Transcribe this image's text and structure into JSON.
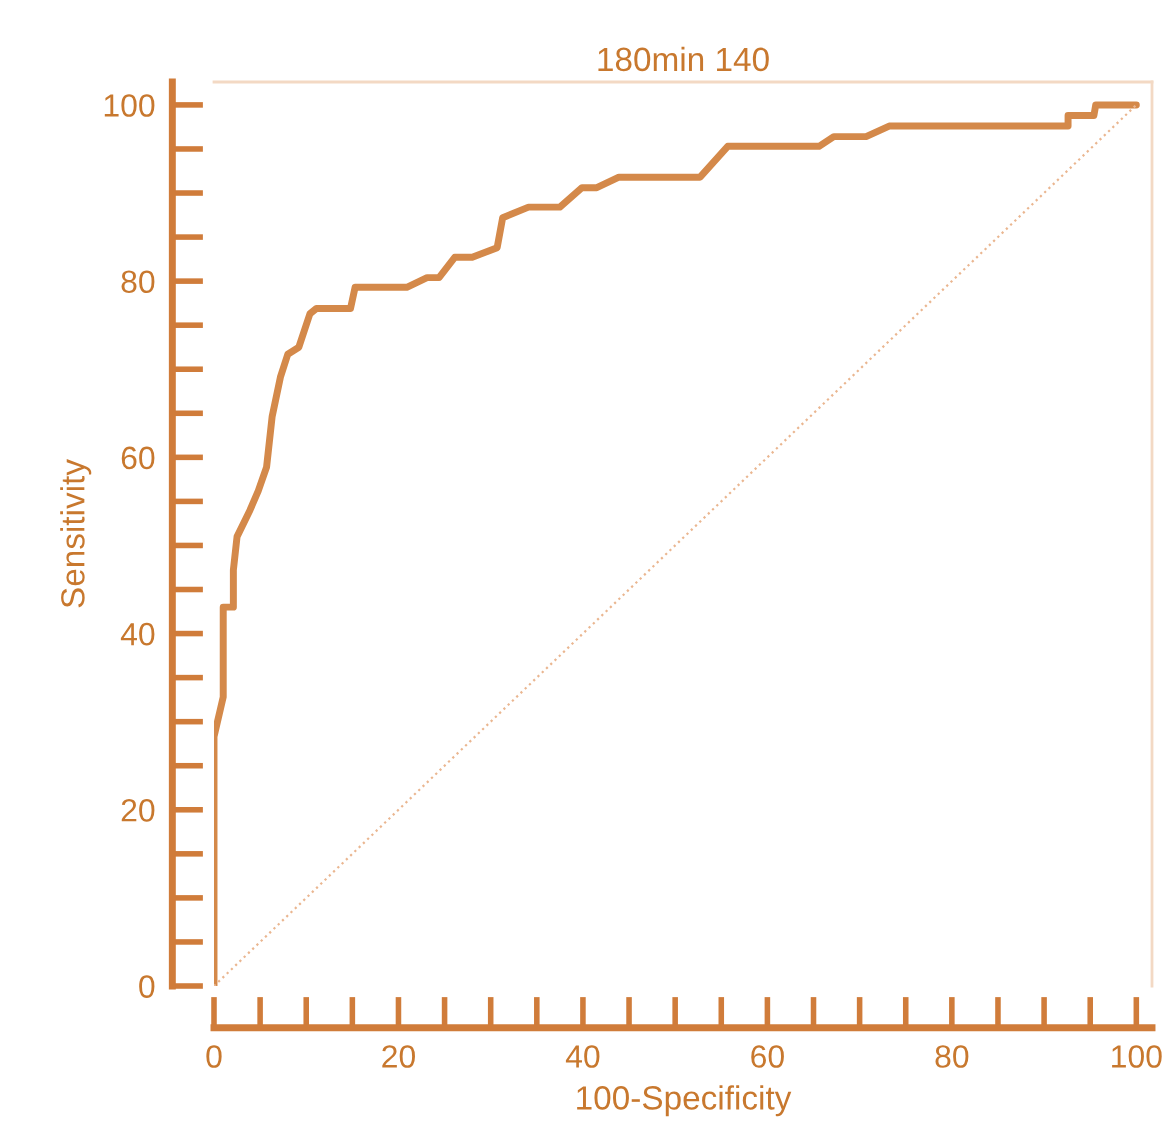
{
  "chart_data": {
    "type": "line",
    "title": "180min 140",
    "xlabel": "100-Specificity",
    "ylabel": "Sensitivity",
    "xlim": [
      0,
      101.7
    ],
    "ylim": [
      0,
      102.6
    ],
    "xticks": [
      0,
      {
        "value": 5,
        "label": null
      },
      {
        "value": 10,
        "label": null
      },
      {
        "value": 15,
        "label": null
      },
      20,
      {
        "value": 25,
        "label": null
      },
      {
        "value": 30,
        "label": null
      },
      {
        "value": 35,
        "label": null
      },
      40,
      {
        "value": 45,
        "label": null
      },
      {
        "value": 50,
        "label": null
      },
      {
        "value": 55,
        "label": null
      },
      60,
      {
        "value": 65,
        "label": null
      },
      {
        "value": 70,
        "label": null
      },
      {
        "value": 75,
        "label": null
      },
      80,
      {
        "value": 85,
        "label": null
      },
      {
        "value": 90,
        "label": null
      },
      {
        "value": 95,
        "label": null
      },
      100
    ],
    "yticks": [
      0,
      {
        "value": 5,
        "label": null
      },
      {
        "value": 10,
        "label": null
      },
      {
        "value": 15,
        "label": null
      },
      20,
      {
        "value": 25,
        "label": null
      },
      {
        "value": 30,
        "label": null
      },
      {
        "value": 35,
        "label": null
      },
      40,
      {
        "value": 45,
        "label": null
      },
      {
        "value": 50,
        "label": null
      },
      {
        "value": 55,
        "label": null
      },
      60,
      {
        "value": 65,
        "label": null
      },
      {
        "value": 70,
        "label": null
      },
      {
        "value": 75,
        "label": null
      },
      80,
      {
        "value": 85,
        "label": null
      },
      {
        "value": 90,
        "label": null
      },
      {
        "value": 95,
        "label": null
      },
      100
    ],
    "grid": false,
    "legend": false,
    "marker": "none",
    "series": [
      {
        "line_style": "solid",
        "color": "#d4894a",
        "x": [
          0,
          0,
          1.0,
          1.0,
          2.1,
          2.1,
          2.5,
          3.9,
          4.8,
          5.7,
          6.3,
          7.2,
          8.0,
          9.2,
          10.4,
          11.1,
          14.8,
          15.3,
          20.9,
          23.1,
          24.4,
          26.1,
          28.0,
          30.7,
          31.3,
          34.1,
          37.5,
          39.9,
          41.5,
          43.9,
          52.7,
          55.7,
          65.6,
          67.2,
          70.7,
          73.2,
          92.6,
          92.6,
          95.4,
          95.6,
          100
        ],
        "values": [
          0,
          28.3,
          32.8,
          43.0,
          43.0,
          47.2,
          51.0,
          54.0,
          56.2,
          58.9,
          64.6,
          69.1,
          71.7,
          72.5,
          76.3,
          76.9,
          76.9,
          79.3,
          79.3,
          80.4,
          80.4,
          82.7,
          82.7,
          83.8,
          87.2,
          88.4,
          88.4,
          90.6,
          90.6,
          91.8,
          91.8,
          95.3,
          95.3,
          96.4,
          96.4,
          97.6,
          97.6,
          98.8,
          98.8,
          100,
          100
        ]
      },
      {
        "type": "line",
        "line_style": "dotted",
        "color": "#eab690",
        "x": [
          0,
          100
        ],
        "values": [
          0,
          100
        ]
      }
    ]
  }
}
